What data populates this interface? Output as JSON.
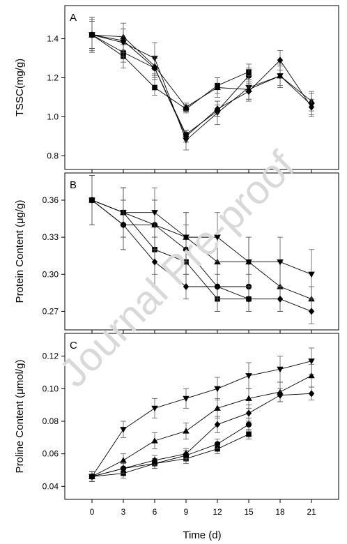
{
  "watermark": "Journal Pre-proof",
  "x_axis": {
    "label": "Time (d)",
    "ticks": [
      0,
      3,
      6,
      9,
      12,
      15,
      18,
      21
    ]
  },
  "chart_data": [
    {
      "type": "line",
      "panel_label": "A",
      "ylabel": "TSSC(mg/g)",
      "ylim": [
        0.73,
        1.57
      ],
      "yticks": [
        0.8,
        1.0,
        1.2,
        1.4
      ],
      "ytick_labels": [
        "0.8",
        "1.0",
        "1.2",
        "1.4"
      ],
      "xlim": [
        -2.6,
        23.6
      ],
      "series": [
        {
          "marker": "square",
          "x": [
            0,
            3,
            6,
            9,
            12,
            15
          ],
          "values": [
            1.42,
            1.31,
            1.15,
            1.04,
            1.16,
            1.23
          ],
          "err": [
            0.08,
            0.06,
            0.04,
            0.02,
            0.04,
            0.04
          ]
        },
        {
          "marker": "circle",
          "x": [
            0,
            3,
            6,
            9,
            12,
            15
          ],
          "values": [
            1.42,
            1.33,
            1.25,
            0.91,
            1.03,
            1.21
          ],
          "err": [
            0.07,
            0.05,
            0.05,
            0.02,
            0.03,
            0.04
          ]
        },
        {
          "marker": "triangle-up",
          "x": [
            0,
            3,
            6,
            9,
            12,
            15,
            18,
            21
          ],
          "values": [
            1.42,
            1.41,
            1.26,
            1.05,
            1.15,
            1.14,
            1.21,
            1.08
          ],
          "err": [
            0.09,
            0.07,
            0.05,
            0.02,
            0.05,
            0.05,
            0.05,
            0.05
          ]
        },
        {
          "marker": "triangle-down",
          "x": [
            0,
            3,
            6,
            9,
            12,
            15,
            18,
            21
          ],
          "values": [
            1.42,
            1.38,
            1.3,
            0.88,
            1.02,
            1.15,
            1.21,
            1.06
          ],
          "err": [
            0.09,
            0.07,
            0.08,
            0.05,
            0.06,
            0.06,
            0.06,
            0.06
          ]
        },
        {
          "marker": "diamond",
          "x": [
            0,
            3,
            6,
            9,
            12,
            15,
            18,
            21
          ],
          "values": [
            1.42,
            1.39,
            1.25,
            0.9,
            1.04,
            1.13,
            1.29,
            1.05
          ],
          "err": [
            0.07,
            0.06,
            0.06,
            0.03,
            0.04,
            0.05,
            0.05,
            0.04
          ]
        }
      ]
    },
    {
      "type": "line",
      "panel_label": "B",
      "ylabel": "Protein Content (μg/g)",
      "ylim": [
        0.255,
        0.382
      ],
      "yticks": [
        0.27,
        0.3,
        0.33,
        0.36
      ],
      "ytick_labels": [
        "0.27",
        "0.30",
        "0.33",
        "0.36"
      ],
      "xlim": [
        -2.6,
        23.6
      ],
      "series": [
        {
          "marker": "square",
          "x": [
            0,
            3,
            6,
            9,
            12,
            15
          ],
          "values": [
            0.36,
            0.35,
            0.32,
            0.31,
            0.28,
            0.28
          ],
          "err": [
            0.02,
            0.02,
            0.02,
            0.02,
            0.01,
            0.01
          ]
        },
        {
          "marker": "circle",
          "x": [
            0,
            3,
            6,
            9,
            12,
            15
          ],
          "values": [
            0.36,
            0.34,
            0.34,
            0.32,
            0.29,
            0.29
          ],
          "err": [
            0.02,
            0.02,
            0.02,
            0.02,
            0.02,
            0.01
          ]
        },
        {
          "marker": "triangle-up",
          "x": [
            0,
            3,
            6,
            9,
            12,
            15,
            18,
            21
          ],
          "values": [
            0.36,
            0.35,
            0.34,
            0.33,
            0.31,
            0.31,
            0.29,
            0.28
          ],
          "err": [
            0.02,
            0.02,
            0.02,
            0.02,
            0.02,
            0.02,
            0.02,
            0.01
          ]
        },
        {
          "marker": "triangle-down",
          "x": [
            0,
            3,
            6,
            9,
            12,
            15,
            18,
            21
          ],
          "values": [
            0.36,
            0.35,
            0.35,
            0.33,
            0.33,
            0.31,
            0.31,
            0.3
          ],
          "err": [
            0.02,
            0.02,
            0.02,
            0.02,
            0.02,
            0.02,
            0.02,
            0.02
          ]
        },
        {
          "marker": "diamond",
          "x": [
            0,
            3,
            6,
            9,
            12,
            15,
            18,
            21
          ],
          "values": [
            0.36,
            0.34,
            0.31,
            0.29,
            0.29,
            0.28,
            0.28,
            0.27
          ],
          "err": [
            0.02,
            0.02,
            0.02,
            0.01,
            0.01,
            0.01,
            0.01,
            0.01
          ]
        }
      ]
    },
    {
      "type": "line",
      "panel_label": "C",
      "ylabel": "Proline Content (μmol/g)",
      "ylim": [
        0.032,
        0.134
      ],
      "yticks": [
        0.04,
        0.06,
        0.08,
        0.1,
        0.12
      ],
      "ytick_labels": [
        "0.04",
        "0.06",
        "0.08",
        "0.10",
        "0.12"
      ],
      "xlim": [
        -2.6,
        23.6
      ],
      "series": [
        {
          "marker": "square",
          "x": [
            0,
            3,
            6,
            9,
            12,
            15
          ],
          "values": [
            0.046,
            0.048,
            0.054,
            0.057,
            0.063,
            0.072
          ],
          "err": [
            0.003,
            0.003,
            0.003,
            0.003,
            0.003,
            0.003
          ]
        },
        {
          "marker": "circle",
          "x": [
            0,
            3,
            6,
            9,
            12,
            15
          ],
          "values": [
            0.046,
            0.051,
            0.054,
            0.059,
            0.066,
            0.078
          ],
          "err": [
            0.003,
            0.003,
            0.003,
            0.003,
            0.003,
            0.004
          ]
        },
        {
          "marker": "triangle-up",
          "x": [
            0,
            3,
            6,
            9,
            12,
            15,
            18,
            21
          ],
          "values": [
            0.046,
            0.056,
            0.068,
            0.074,
            0.088,
            0.094,
            0.098,
            0.108
          ],
          "err": [
            0.003,
            0.004,
            0.005,
            0.005,
            0.006,
            0.006,
            0.006,
            0.007
          ]
        },
        {
          "marker": "triangle-down",
          "x": [
            0,
            3,
            6,
            9,
            12,
            15,
            18,
            21
          ],
          "values": [
            0.046,
            0.075,
            0.088,
            0.094,
            0.1,
            0.108,
            0.112,
            0.117
          ],
          "err": [
            0.003,
            0.005,
            0.006,
            0.006,
            0.007,
            0.008,
            0.008,
            0.008
          ]
        },
        {
          "marker": "diamond",
          "x": [
            0,
            3,
            6,
            9,
            12,
            15,
            18,
            21
          ],
          "values": [
            0.046,
            0.051,
            0.056,
            0.06,
            0.078,
            0.085,
            0.096,
            0.097
          ],
          "err": [
            0.003,
            0.003,
            0.003,
            0.003,
            0.005,
            0.005,
            0.004,
            0.004
          ]
        }
      ]
    }
  ]
}
